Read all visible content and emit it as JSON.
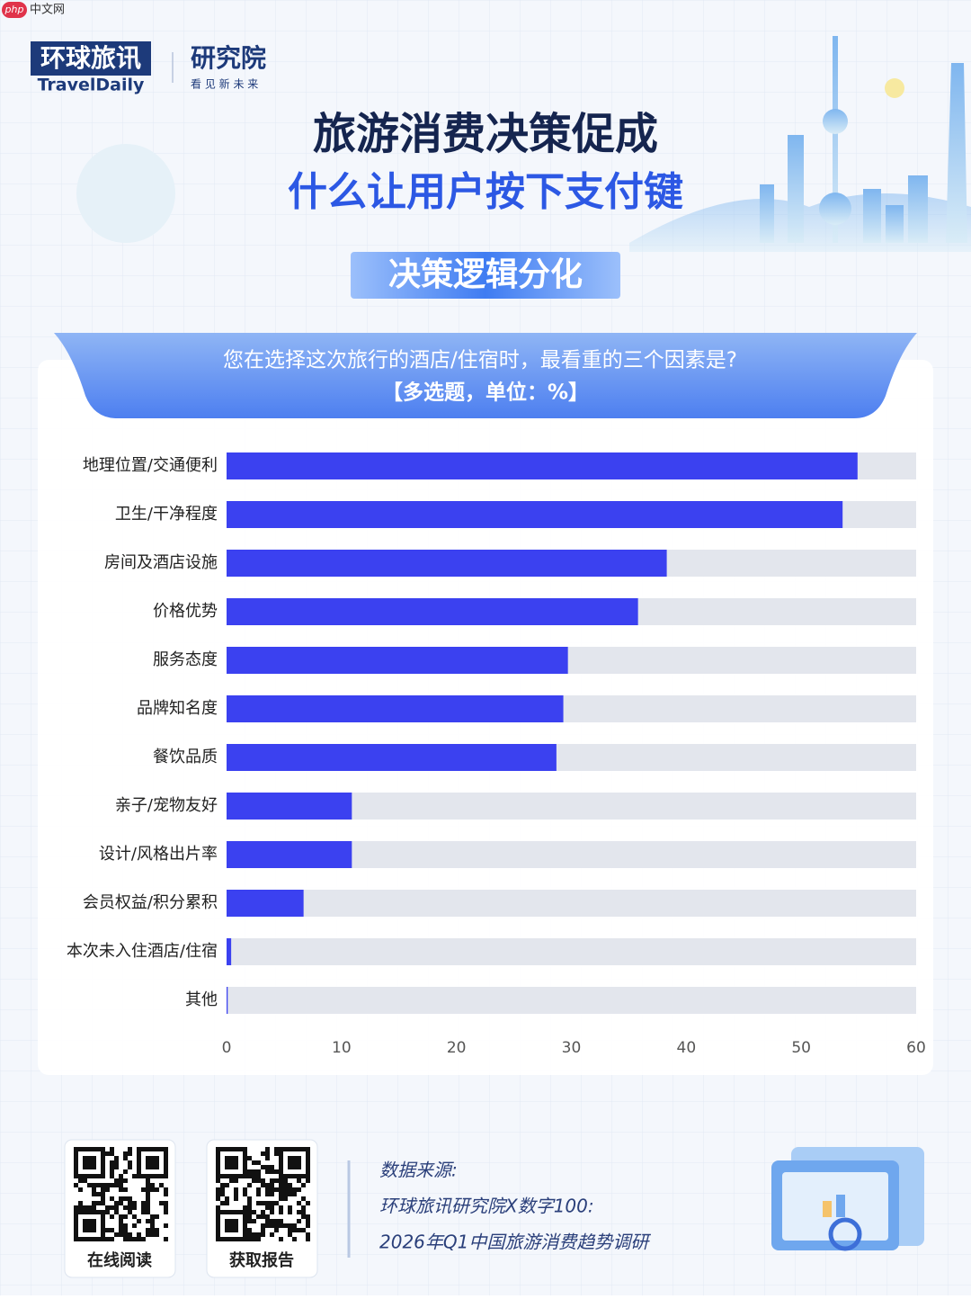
{
  "watermark": {
    "logo": "php",
    "text": "中文网"
  },
  "header": {
    "brand": "环球旅讯",
    "brand_en": "TravelDaily",
    "institute": "研究院",
    "slogan": "看 见 新 未 来",
    "title": "旅游消费决策促成",
    "subtitle": "什么让用户按下支付键",
    "section": "决策逻辑分化"
  },
  "chart_data": {
    "type": "bar",
    "orientation": "horizontal",
    "title": "您在选择这次旅行的酒店/住宿时，最看重的三个因素是?",
    "subtitle": "【多选题，单位：%】",
    "categories": [
      "地理位置/交通便利",
      "卫生/干净程度",
      "房间及酒店设施",
      "价格优势",
      "服务态度",
      "品牌知名度",
      "餐饮品质",
      "亲子/宠物友好",
      "设计/风格出片率",
      "会员权益/积分累积",
      "本次未入住酒店/住宿",
      "其他"
    ],
    "values": [
      54.9,
      53.6,
      38.3,
      35.8,
      29.7,
      29.3,
      28.7,
      10.9,
      10.9,
      6.7,
      0.4,
      0.1
    ],
    "color": "#3b41f0",
    "track_color": "#e3e6ed",
    "xlim": [
      0,
      60
    ],
    "xticks": [
      0,
      10,
      20,
      30,
      40,
      50,
      60
    ],
    "grid": false
  },
  "footer": {
    "qr_labels": [
      "在线阅读",
      "获取报告"
    ],
    "source_title": "数据来源:",
    "source_lines": [
      "环球旅讯研究院X数字100:",
      "2026年Q1中国旅游消费趋势调研"
    ]
  }
}
